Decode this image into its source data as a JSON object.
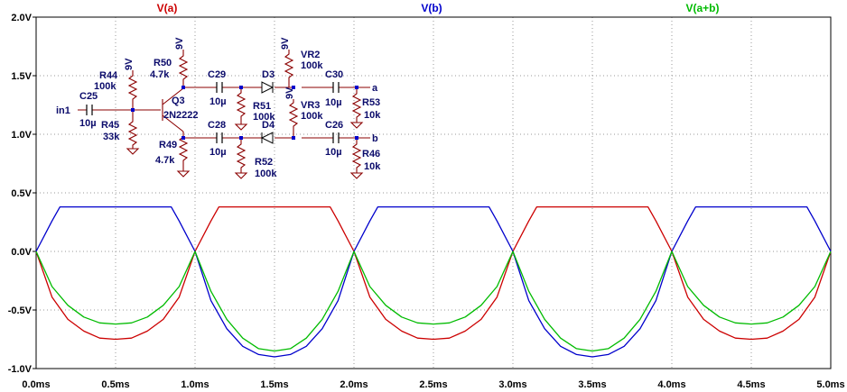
{
  "chart_data": {
    "type": "line",
    "title": "",
    "xlabel": "",
    "ylabel": "",
    "xlim": [
      0,
      5.0
    ],
    "ylim": [
      -1.0,
      2.0
    ],
    "x_unit": "ms",
    "y_unit": "V",
    "grid": true,
    "legend_position": "top",
    "x_ticks": [
      "0.0ms",
      "0.5ms",
      "1.0ms",
      "1.5ms",
      "2.0ms",
      "2.5ms",
      "3.0ms",
      "3.5ms",
      "4.0ms",
      "4.5ms",
      "5.0ms"
    ],
    "y_ticks": [
      "2.0V",
      "1.5V",
      "1.0V",
      "0.5V",
      "0.0V",
      "-0.5V",
      "-1.0V"
    ],
    "x_tick_values": [
      0,
      0.5,
      1.0,
      1.5,
      2.0,
      2.5,
      3.0,
      3.5,
      4.0,
      4.5,
      5.0
    ],
    "y_tick_values": [
      2.0,
      1.5,
      1.0,
      0.5,
      0.0,
      -0.5,
      -1.0
    ],
    "series": [
      {
        "name": "V(a)",
        "color": "#cc0000",
        "x": [
          0.0,
          0.1,
          0.2,
          0.3,
          0.4,
          0.5,
          0.6,
          0.7,
          0.8,
          0.9,
          1.0,
          1.1,
          1.15,
          1.2,
          1.3,
          1.4,
          1.5,
          1.6,
          1.7,
          1.8,
          1.85,
          1.9,
          2.0,
          2.1,
          2.2,
          2.3,
          2.4,
          2.5,
          2.6,
          2.7,
          2.8,
          2.9,
          3.0,
          3.1,
          3.15,
          3.2,
          3.3,
          3.4,
          3.5,
          3.6,
          3.7,
          3.8,
          3.85,
          3.9,
          4.0,
          4.1,
          4.2,
          4.3,
          4.4,
          4.5,
          4.6,
          4.7,
          4.8,
          4.9,
          5.0
        ],
        "y": [
          0.0,
          -0.39,
          -0.58,
          -0.68,
          -0.74,
          -0.75,
          -0.74,
          -0.68,
          -0.58,
          -0.39,
          0.0,
          0.26,
          0.38,
          0.38,
          0.38,
          0.38,
          0.38,
          0.38,
          0.38,
          0.38,
          0.38,
          0.26,
          0.0,
          -0.39,
          -0.58,
          -0.68,
          -0.74,
          -0.75,
          -0.74,
          -0.68,
          -0.58,
          -0.39,
          0.0,
          0.26,
          0.38,
          0.38,
          0.38,
          0.38,
          0.38,
          0.38,
          0.38,
          0.38,
          0.38,
          0.26,
          0.0,
          -0.39,
          -0.58,
          -0.68,
          -0.74,
          -0.75,
          -0.74,
          -0.68,
          -0.58,
          -0.39,
          0.0
        ]
      },
      {
        "name": "V(b)",
        "color": "#0000cc",
        "x": [
          0.0,
          0.1,
          0.15,
          0.2,
          0.3,
          0.4,
          0.5,
          0.6,
          0.7,
          0.8,
          0.85,
          0.9,
          1.0,
          1.1,
          1.2,
          1.3,
          1.4,
          1.5,
          1.6,
          1.7,
          1.8,
          1.9,
          2.0,
          2.1,
          2.15,
          2.2,
          2.3,
          2.4,
          2.5,
          2.6,
          2.7,
          2.8,
          2.85,
          2.9,
          3.0,
          3.1,
          3.2,
          3.3,
          3.4,
          3.5,
          3.6,
          3.7,
          3.8,
          3.9,
          4.0,
          4.1,
          4.15,
          4.2,
          4.3,
          4.4,
          4.5,
          4.6,
          4.7,
          4.8,
          4.85,
          4.9,
          5.0
        ],
        "y": [
          0.0,
          0.26,
          0.38,
          0.38,
          0.38,
          0.38,
          0.38,
          0.38,
          0.38,
          0.38,
          0.38,
          0.26,
          0.0,
          -0.42,
          -0.66,
          -0.81,
          -0.88,
          -0.9,
          -0.88,
          -0.81,
          -0.66,
          -0.42,
          0.0,
          0.26,
          0.38,
          0.38,
          0.38,
          0.38,
          0.38,
          0.38,
          0.38,
          0.38,
          0.38,
          0.26,
          0.0,
          -0.42,
          -0.66,
          -0.81,
          -0.88,
          -0.9,
          -0.88,
          -0.81,
          -0.66,
          -0.42,
          0.0,
          0.26,
          0.38,
          0.38,
          0.38,
          0.38,
          0.38,
          0.38,
          0.38,
          0.38,
          0.38,
          0.26,
          0.0
        ]
      },
      {
        "name": "V(a+b)",
        "color": "#00bb00",
        "x": [
          0.0,
          0.1,
          0.2,
          0.3,
          0.4,
          0.5,
          0.6,
          0.7,
          0.8,
          0.9,
          1.0,
          1.1,
          1.2,
          1.3,
          1.4,
          1.5,
          1.6,
          1.7,
          1.8,
          1.9,
          2.0,
          2.1,
          2.2,
          2.3,
          2.4,
          2.5,
          2.6,
          2.7,
          2.8,
          2.9,
          3.0,
          3.1,
          3.2,
          3.3,
          3.4,
          3.5,
          3.6,
          3.7,
          3.8,
          3.9,
          4.0,
          4.1,
          4.2,
          4.3,
          4.4,
          4.5,
          4.6,
          4.7,
          4.8,
          4.9,
          5.0
        ],
        "y": [
          0.0,
          -0.3,
          -0.46,
          -0.56,
          -0.61,
          -0.62,
          -0.61,
          -0.56,
          -0.46,
          -0.3,
          0.0,
          -0.34,
          -0.58,
          -0.74,
          -0.83,
          -0.85,
          -0.83,
          -0.74,
          -0.58,
          -0.34,
          0.0,
          -0.3,
          -0.46,
          -0.56,
          -0.61,
          -0.62,
          -0.61,
          -0.56,
          -0.46,
          -0.3,
          0.0,
          -0.34,
          -0.58,
          -0.74,
          -0.83,
          -0.85,
          -0.83,
          -0.74,
          -0.58,
          -0.34,
          0.0,
          -0.3,
          -0.46,
          -0.56,
          -0.61,
          -0.62,
          -0.61,
          -0.56,
          -0.46,
          -0.3,
          0.0
        ]
      }
    ],
    "annotations": {
      "schematic_labels": [
        "R44",
        "100k",
        "9V",
        "C25",
        "in1",
        "10µ",
        "R45",
        "33k",
        "R50",
        "4.7k",
        "9V",
        "Q3",
        "2N2222",
        "R49",
        "4.7k",
        "C29",
        "10µ",
        "C28",
        "10µ",
        "R51",
        "100k",
        "R52",
        "100k",
        "D3",
        "D4",
        "VR2",
        "100k",
        "9V",
        "VR3",
        "100k",
        "9V",
        "C30",
        "10µ",
        "C26",
        "10µ",
        "R53",
        "10k",
        "R46",
        "10k",
        "a",
        "b"
      ]
    }
  }
}
